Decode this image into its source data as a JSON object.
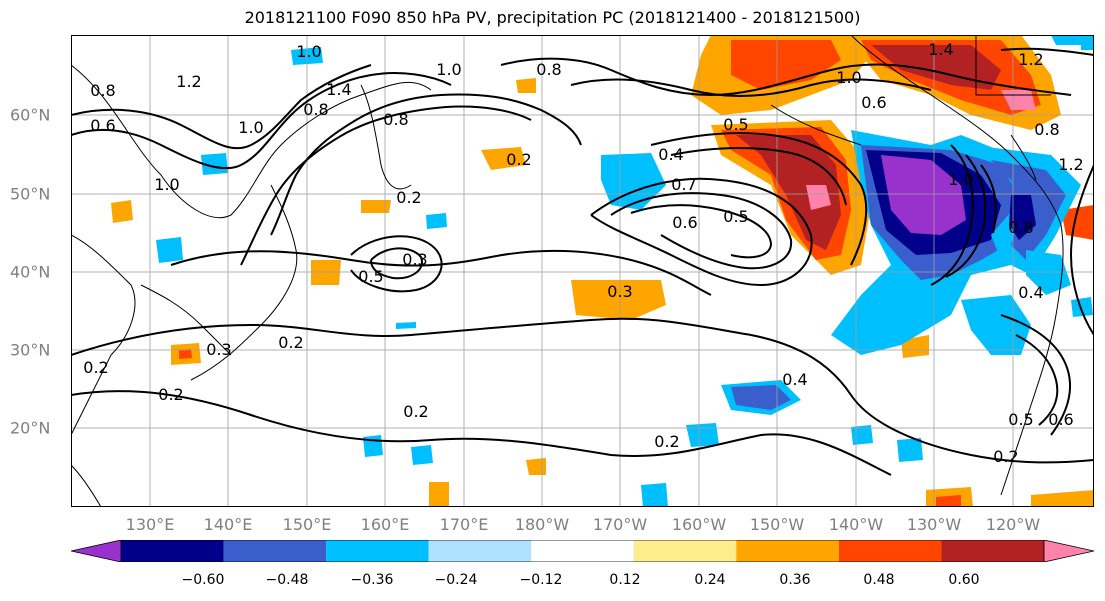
{
  "title": "2018121100 F090 850 hPa PV, precipitation PC (2018121400 - 2018121500)",
  "lon_labels": [
    "130°E",
    "140°E",
    "150°E",
    "160°E",
    "170°E",
    "180°W",
    "170°W",
    "160°W",
    "150°W",
    "140°W",
    "130°W",
    "120°W"
  ],
  "lat_labels": [
    "60°N",
    "50°N",
    "40°N",
    "30°N",
    "20°N"
  ],
  "contour_labels": [
    "1.0",
    "1.4",
    "0.8",
    "0.6",
    "1.2",
    "1.0",
    "0.8",
    "0.8",
    "1.0",
    "0.8",
    "1.2",
    "1.0",
    "1.4",
    "0.8",
    "0.6",
    "0.2",
    "0.5",
    "0.4",
    "0.7",
    "0.6",
    "0.5",
    "0.2",
    "0.5",
    "0.3",
    "0.3",
    "0.2",
    "0.2",
    "0.3",
    "0.2",
    "0.2",
    "0.4",
    "0.5",
    "0.2",
    "0.2",
    "0.6",
    "0.4",
    "0.8",
    "1.0",
    "1.2",
    "1.0"
  ],
  "colorbar": {
    "ticks": [
      "−0.60",
      "−0.48",
      "−0.36",
      "−0.24",
      "−0.12",
      "0.12",
      "0.24",
      "0.36",
      "0.48",
      "0.60"
    ],
    "colors": [
      "#9932cc",
      "#00008b",
      "#3a5fcd",
      "#00bfff",
      "#b0e2ff",
      "#ffffff",
      "#ffec8b",
      "#ffa500",
      "#ff4500",
      "#b22222",
      "#ff82ab"
    ]
  },
  "colors": {
    "neg_strong": "#9932cc",
    "neg_navy": "#00008b",
    "neg_blue": "#3a5fcd",
    "neg_sky": "#00bfff",
    "neg_light": "#b0e2ff",
    "pos_yellow": "#ffec8b",
    "pos_orange": "#ffa500",
    "pos_red": "#ff4500",
    "pos_darkred": "#b22222",
    "pos_pink": "#ff82ab"
  }
}
